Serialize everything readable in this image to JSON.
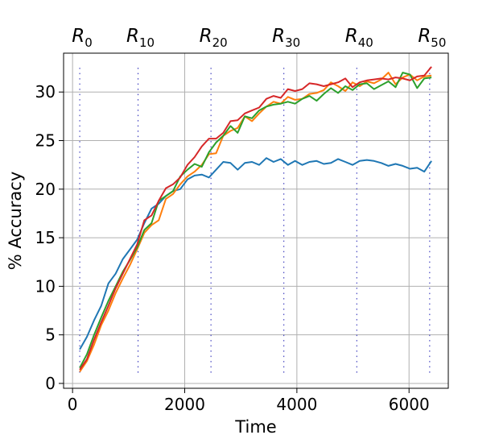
{
  "chart_data": {
    "type": "line",
    "title": "",
    "xlabel": "Time",
    "ylabel": "% Accuracy",
    "xlim": [
      -160,
      6700
    ],
    "ylim": [
      -0.5,
      34
    ],
    "xticks": [
      0,
      2000,
      4000,
      6000
    ],
    "xtick_labels": [
      "0",
      "2000",
      "4000",
      "6000"
    ],
    "yticks": [
      0,
      5,
      10,
      15,
      20,
      25,
      30
    ],
    "ytick_labels": [
      "0",
      "5",
      "10",
      "15",
      "20",
      "25",
      "30"
    ],
    "grid": true,
    "round_markers": [
      {
        "label": "R",
        "sub": "0",
        "x": 128
      },
      {
        "label": "R",
        "sub": "10",
        "x": 1168
      },
      {
        "label": "R",
        "sub": "20",
        "x": 2468
      },
      {
        "label": "R",
        "sub": "30",
        "x": 3768
      },
      {
        "label": "R",
        "sub": "40",
        "x": 5068
      },
      {
        "label": "R",
        "sub": "50",
        "x": 6368
      }
    ],
    "x": [
      128,
      256,
      384,
      512,
      640,
      768,
      896,
      1024,
      1152,
      1280,
      1408,
      1536,
      1664,
      1792,
      1920,
      2048,
      2176,
      2304,
      2432,
      2560,
      2688,
      2816,
      2944,
      3072,
      3200,
      3328,
      3456,
      3584,
      3712,
      3840,
      3968,
      4096,
      4224,
      4352,
      4480,
      4608,
      4736,
      4864,
      4992,
      5120,
      5248,
      5376,
      5504,
      5632,
      5760,
      5888,
      6016,
      6144,
      6272,
      6400
    ],
    "series": [
      {
        "name": "blue",
        "color": "#1f77b4",
        "values": [
          3.5,
          4.8,
          6.5,
          8.0,
          10.3,
          11.3,
          12.8,
          13.8,
          14.8,
          16.5,
          18.0,
          18.5,
          19.3,
          19.8,
          20.0,
          21.0,
          21.4,
          21.5,
          21.2,
          22.0,
          22.8,
          22.7,
          22.0,
          22.7,
          22.8,
          22.5,
          23.2,
          22.8,
          23.1,
          22.5,
          22.9,
          22.5,
          22.8,
          22.9,
          22.6,
          22.7,
          23.1,
          22.8,
          22.5,
          22.9,
          23.0,
          22.9,
          22.7,
          22.4,
          22.6,
          22.4,
          22.1,
          22.2,
          21.8,
          22.9
        ]
      },
      {
        "name": "orange",
        "color": "#ff7f0e",
        "values": [
          1.2,
          2.3,
          4.0,
          6.0,
          7.5,
          9.3,
          10.8,
          12.2,
          13.8,
          15.5,
          16.3,
          16.8,
          19.0,
          19.5,
          20.5,
          21.3,
          21.8,
          22.5,
          23.6,
          23.7,
          25.5,
          26.0,
          26.3,
          27.5,
          27.0,
          27.8,
          28.5,
          29.0,
          28.8,
          29.5,
          29.2,
          29.3,
          29.8,
          29.9,
          30.2,
          31.0,
          30.6,
          30.1,
          31.0,
          30.6,
          31.1,
          30.9,
          31.3,
          32.0,
          30.8,
          31.5,
          31.8,
          31.2,
          31.6,
          31.7
        ]
      },
      {
        "name": "green",
        "color": "#2ca02c",
        "values": [
          1.6,
          3.0,
          5.0,
          6.8,
          8.5,
          10.0,
          11.5,
          12.7,
          14.0,
          15.8,
          16.5,
          18.8,
          19.3,
          19.8,
          21.3,
          22.0,
          22.6,
          22.3,
          23.8,
          24.8,
          25.5,
          26.5,
          25.8,
          27.5,
          27.3,
          28.1,
          28.5,
          28.7,
          28.8,
          29.0,
          28.8,
          29.3,
          29.6,
          29.1,
          29.8,
          30.4,
          29.9,
          30.6,
          30.2,
          30.8,
          30.9,
          30.3,
          30.7,
          31.1,
          30.5,
          32.0,
          31.8,
          30.4,
          31.4,
          31.5
        ]
      },
      {
        "name": "red",
        "color": "#d62728",
        "values": [
          1.4,
          2.5,
          4.5,
          6.3,
          8.0,
          9.8,
          11.3,
          12.8,
          14.3,
          16.8,
          17.3,
          18.8,
          20.1,
          20.5,
          21.2,
          22.5,
          23.3,
          24.4,
          25.2,
          25.2,
          25.8,
          27.0,
          27.1,
          27.8,
          28.1,
          28.4,
          29.3,
          29.6,
          29.4,
          30.3,
          30.1,
          30.3,
          30.9,
          30.8,
          30.6,
          30.8,
          31.0,
          31.4,
          30.5,
          31.0,
          31.2,
          31.3,
          31.4,
          31.3,
          31.5,
          31.4,
          31.2,
          31.6,
          31.7,
          32.6
        ]
      }
    ]
  }
}
